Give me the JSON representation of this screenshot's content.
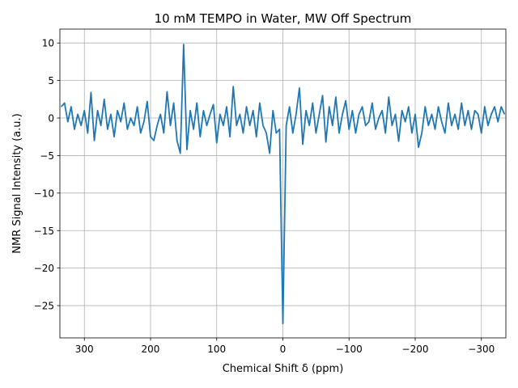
{
  "chart_data": {
    "type": "line",
    "title": "10 mM TEMPO in Water, MW Off Spectrum",
    "xlabel": "Chemical Shift δ (ppm)",
    "ylabel": "NMR Signal Intensity (a.u.)",
    "color": "#1f77b4",
    "grid": true,
    "xlim": [
      337,
      -337
    ],
    "ylim": [
      -29.3,
      11.85
    ],
    "xticks": [
      300,
      200,
      100,
      0,
      {
        "value": -100,
        "label": "−100"
      },
      {
        "value": -200,
        "label": "−200"
      },
      {
        "value": -300,
        "label": "−300"
      }
    ],
    "yticks": [
      10,
      5,
      0,
      {
        "value": -5,
        "label": "−5"
      },
      {
        "value": -10,
        "label": "−10"
      },
      {
        "value": -15,
        "label": "−15"
      },
      {
        "value": -20,
        "label": "−20"
      },
      {
        "value": -25,
        "label": "−25"
      }
    ],
    "x": [
      335,
      330,
      325,
      320,
      315,
      310,
      305,
      300,
      295,
      290,
      285,
      280,
      275,
      270,
      265,
      260,
      255,
      250,
      245,
      240,
      235,
      230,
      225,
      220,
      215,
      210,
      205,
      200,
      195,
      190,
      185,
      180,
      175,
      170,
      165,
      160,
      155,
      150,
      145,
      140,
      135,
      130,
      125,
      120,
      115,
      110,
      105,
      100,
      95,
      90,
      85,
      80,
      75,
      70,
      65,
      60,
      55,
      50,
      45,
      40,
      35,
      30,
      25,
      20,
      15,
      10,
      5,
      0,
      -5,
      -10,
      -15,
      -20,
      -25,
      -30,
      -35,
      -40,
      -45,
      -50,
      -55,
      -60,
      -65,
      -70,
      -75,
      -80,
      -85,
      -90,
      -95,
      -100,
      -105,
      -110,
      -115,
      -120,
      -125,
      -130,
      -135,
      -140,
      -145,
      -150,
      -155,
      -160,
      -165,
      -170,
      -175,
      -180,
      -185,
      -190,
      -195,
      -200,
      -205,
      -210,
      -215,
      -220,
      -225,
      -230,
      -235,
      -240,
      -245,
      -250,
      -255,
      -260,
      -265,
      -270,
      -275,
      -280,
      -285,
      -290,
      -295,
      -300,
      -305,
      -310,
      -315,
      -320,
      -325,
      -330,
      -335
    ],
    "values": [
      1.5,
      2,
      -0.5,
      1.5,
      -1.5,
      0.5,
      -1,
      1,
      -2,
      3.4,
      -3,
      1,
      -1,
      2.5,
      -1.5,
      0.5,
      -2.5,
      1,
      -0.5,
      2,
      -1.5,
      0,
      -1,
      1.5,
      -2,
      -0.5,
      2.2,
      -2.5,
      -3,
      -1,
      0.5,
      -2,
      3.5,
      -1,
      2,
      -3,
      -4.7,
      9.8,
      -4.2,
      1,
      -1.5,
      2,
      -2.5,
      1,
      -1,
      0.5,
      1.8,
      -3.3,
      0.5,
      -1,
      1.5,
      -2.5,
      4.2,
      -1,
      0.5,
      -2,
      1.5,
      -1,
      1,
      -2.5,
      2,
      -1,
      -2,
      -4.7,
      1,
      -2,
      -1.5,
      -27.4,
      -1,
      1.5,
      -2,
      0.5,
      4,
      -3.5,
      1,
      -1,
      2,
      -2,
      0.5,
      3,
      -3.2,
      1.5,
      -1,
      2.8,
      -2,
      0.5,
      2.3,
      -1.5,
      1,
      -2,
      0.5,
      1.5,
      -1,
      -0.5,
      2,
      -1.5,
      0,
      1,
      -2,
      2.8,
      -1,
      0.5,
      -3.1,
      1,
      -0.5,
      1.5,
      -2,
      0.5,
      -3.9,
      -2,
      1.5,
      -1,
      0.5,
      -1.5,
      1.5,
      -0.5,
      -2,
      2,
      -1,
      0.5,
      -1.5,
      2,
      -1,
      1,
      -1.5,
      1,
      0.5,
      -2,
      1.5,
      -1,
      0.5,
      1.5,
      -0.5,
      1.5,
      0.5
    ]
  }
}
